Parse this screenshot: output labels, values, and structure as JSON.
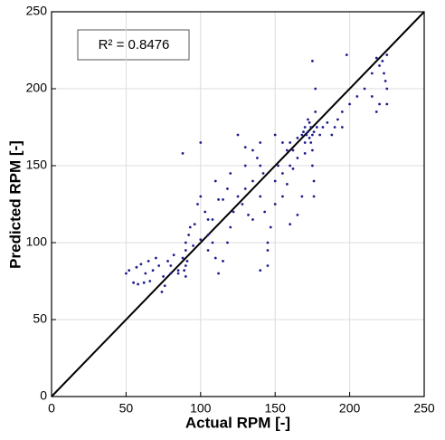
{
  "chart_data": {
    "type": "scatter",
    "annotation": "R² = 0.8476",
    "xlabel": "Actual RPM [-]",
    "ylabel": "Predicted RPM [-]",
    "xlim": [
      0,
      250
    ],
    "ylim": [
      0,
      250
    ],
    "xticks": [
      0,
      50,
      100,
      150,
      200,
      250
    ],
    "yticks": [
      0,
      50,
      100,
      150,
      200,
      250
    ],
    "grid": true,
    "color": "#1c1c8e",
    "reference_line": {
      "x": [
        0,
        250
      ],
      "y": [
        0,
        250
      ]
    },
    "x": [
      50,
      52,
      55,
      57,
      58,
      60,
      62,
      63,
      65,
      66,
      68,
      70,
      72,
      74,
      75,
      76,
      78,
      80,
      82,
      85,
      88,
      89,
      90,
      90,
      90,
      90,
      91,
      92,
      93,
      95,
      96,
      88,
      100,
      98,
      100,
      103,
      105,
      105,
      108,
      110,
      112,
      115,
      118,
      110,
      115,
      118,
      120,
      120,
      122,
      125,
      128,
      130,
      130,
      132,
      135,
      135,
      138,
      140,
      140,
      142,
      143,
      145,
      145,
      140,
      147,
      150,
      150,
      152,
      155,
      155,
      158,
      160,
      160,
      162,
      165,
      165,
      168,
      170,
      170,
      172,
      172,
      173,
      174,
      175,
      175,
      175,
      176,
      176,
      177,
      177,
      175,
      178,
      180,
      182,
      185,
      188,
      190,
      192,
      195,
      195,
      198,
      200,
      205,
      210,
      215,
      218,
      220,
      222,
      224,
      225,
      225,
      220,
      215,
      218,
      225,
      223,
      112,
      80,
      85,
      105,
      100,
      108,
      150,
      168,
      165,
      160,
      125,
      130,
      140,
      145,
      135,
      155,
      158,
      162,
      170,
      173,
      176,
      174,
      171,
      169
    ],
    "y": [
      80,
      82,
      74,
      84,
      73,
      86,
      74,
      80,
      88,
      75,
      82,
      90,
      85,
      68,
      78,
      72,
      88,
      85,
      92,
      80,
      90,
      82,
      85,
      95,
      100,
      78,
      88,
      105,
      110,
      98,
      112,
      158,
      165,
      125,
      130,
      120,
      115,
      105,
      100,
      90,
      80,
      88,
      100,
      140,
      128,
      135,
      145,
      110,
      120,
      130,
      125,
      150,
      135,
      118,
      140,
      160,
      155,
      150,
      130,
      145,
      120,
      100,
      85,
      82,
      110,
      140,
      125,
      150,
      165,
      130,
      160,
      150,
      165,
      160,
      168,
      155,
      170,
      175,
      165,
      172,
      180,
      168,
      175,
      170,
      160,
      150,
      140,
      130,
      185,
      200,
      218,
      175,
      170,
      175,
      178,
      170,
      175,
      180,
      185,
      175,
      222,
      190,
      195,
      200,
      210,
      220,
      215,
      218,
      205,
      200,
      190,
      190,
      195,
      185,
      222,
      210,
      128,
      80,
      82,
      95,
      102,
      115,
      170,
      130,
      118,
      112,
      170,
      162,
      165,
      95,
      115,
      145,
      138,
      148,
      158,
      178,
      172,
      165,
      170,
      172
    ]
  }
}
